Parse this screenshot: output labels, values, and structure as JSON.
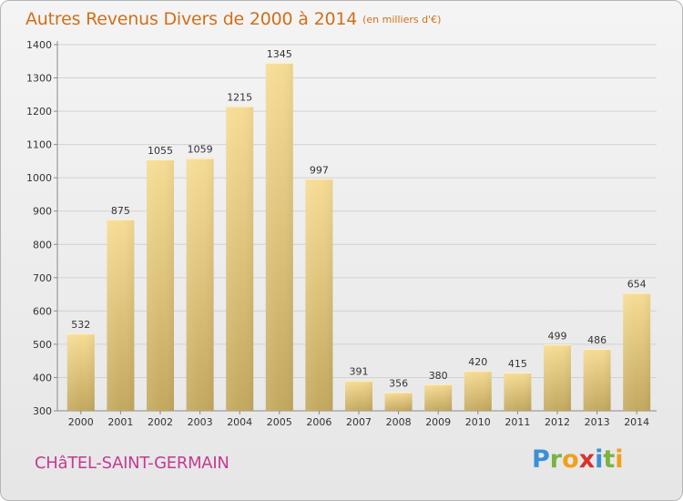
{
  "header": {
    "title": "Autres Revenus Divers de 2000 à 2014",
    "unit": "(en milliers d'€)"
  },
  "footer": {
    "commune": "CHâTEL-SAINT-GERMAIN",
    "logo_text": "Proxiti"
  },
  "colors": {
    "title": "#d0701a",
    "commune": "#c33b94",
    "bar_top": "#f6dc94",
    "bar_bottom": "#c3a85e"
  },
  "chart_data": {
    "type": "bar",
    "title": "Autres Revenus Divers de 2000 à 2014",
    "xlabel": "",
    "ylabel": "",
    "categories": [
      "2000",
      "2001",
      "2002",
      "2003",
      "2004",
      "2005",
      "2006",
      "2007",
      "2008",
      "2009",
      "2010",
      "2011",
      "2012",
      "2013",
      "2014"
    ],
    "values": [
      532,
      875,
      1055,
      1059,
      1215,
      1345,
      997,
      391,
      356,
      380,
      420,
      415,
      499,
      486,
      654
    ],
    "ylim": [
      300,
      1400
    ],
    "yticks": [
      300,
      400,
      500,
      600,
      700,
      800,
      900,
      1000,
      1100,
      1200,
      1300,
      1400
    ],
    "grid": true,
    "legend": "none"
  }
}
